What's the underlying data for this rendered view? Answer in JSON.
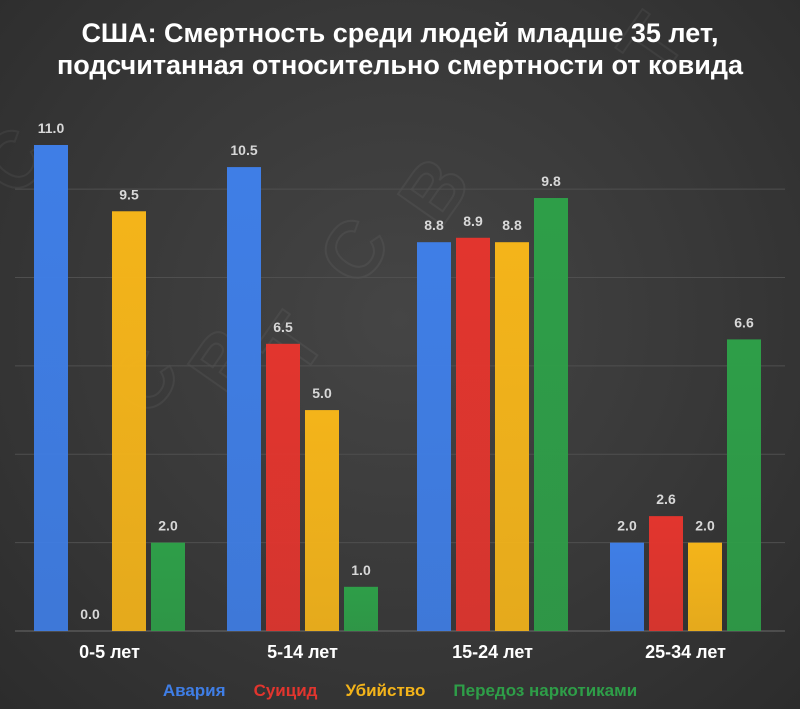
{
  "chart_data": {
    "type": "bar",
    "title_line1": "США: Смертность среди людей младше 35 лет,",
    "title_line2": "подсчитанная относительно смертности от ковида",
    "categories": [
      "0-5 лет",
      "5-14 лет",
      "15-24 лет",
      "25-34 лет"
    ],
    "series": [
      {
        "name": "Авария",
        "color": "#3f7ee6",
        "values": [
          11.0,
          10.5,
          8.8,
          2.0
        ]
      },
      {
        "name": "Суицид",
        "color": "#e2352e",
        "values": [
          0.0,
          6.5,
          8.9,
          2.6
        ]
      },
      {
        "name": "Убийство",
        "color": "#f4b41a",
        "values": [
          9.5,
          5.0,
          8.8,
          2.0
        ]
      },
      {
        "name": "Передоз наркотиками",
        "color": "#2e9e48",
        "values": [
          2.0,
          1.0,
          9.8,
          6.6
        ]
      }
    ],
    "value_labels": [
      [
        "11.0",
        "10.5",
        "8.8",
        "2.0"
      ],
      [
        "0.0",
        "6.5",
        "8.9",
        "2.6"
      ],
      [
        "9.5",
        "5.0",
        "8.8",
        "2.0"
      ],
      [
        "2.0",
        "1.0",
        "9.8",
        "6.6"
      ]
    ],
    "ylim": [
      0,
      11
    ],
    "grid": true,
    "legend_position": "bottom",
    "xlabel": "",
    "ylabel": ""
  }
}
